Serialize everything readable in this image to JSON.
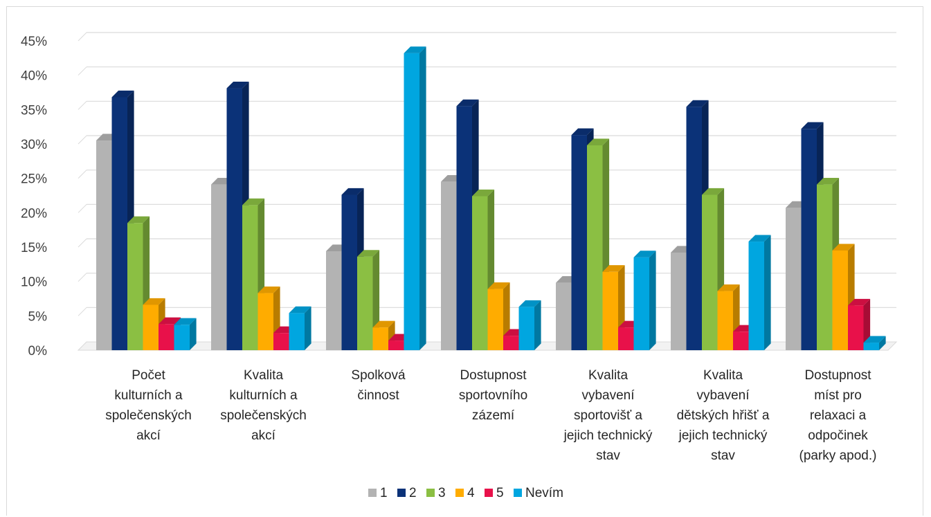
{
  "chart_data": {
    "type": "bar",
    "title": "",
    "xlabel": "",
    "ylabel": "",
    "ylim": [
      0,
      45
    ],
    "y_ticks": [
      "0%",
      "5%",
      "10%",
      "15%",
      "20%",
      "25%",
      "30%",
      "35%",
      "40%",
      "45%"
    ],
    "grid": true,
    "legend_position": "bottom",
    "categories": [
      [
        "Počet",
        "kulturních a",
        "společenských",
        "akcí"
      ],
      [
        "Kvalita",
        "kulturních a",
        "společenských",
        "akcí"
      ],
      [
        "Spolková",
        "činnost"
      ],
      [
        "Dostupnost",
        "sportovního",
        "zázemí"
      ],
      [
        "Kvalita",
        "vybavení",
        "sportovišť a",
        "jejich technický",
        "stav"
      ],
      [
        "Kvalita",
        "vybavení",
        "dětských hřišť a",
        "jejich technický",
        "stav"
      ],
      [
        "Dostupnost",
        "míst pro",
        "relaxaci a",
        "odpočinek",
        "(parky apod.)"
      ]
    ],
    "series": [
      {
        "name": "1",
        "color": "#b3b3b3",
        "values": [
          30.5,
          24.1,
          14.4,
          24.5,
          9.8,
          14.2,
          20.7
        ]
      },
      {
        "name": "2",
        "color": "#0b3278",
        "values": [
          36.8,
          38.1,
          22.6,
          35.5,
          31.3,
          35.4,
          32.2
        ]
      },
      {
        "name": "3",
        "color": "#8bbf43",
        "values": [
          18.5,
          21.1,
          13.6,
          22.4,
          29.8,
          22.6,
          24.1
        ]
      },
      {
        "name": "4",
        "color": "#ffac00",
        "values": [
          6.6,
          8.3,
          3.3,
          8.9,
          11.4,
          8.6,
          14.5
        ]
      },
      {
        "name": "5",
        "color": "#e8114a",
        "values": [
          3.8,
          2.5,
          1.4,
          2.1,
          3.3,
          2.7,
          6.5
        ]
      },
      {
        "name": "Nevím",
        "color": "#00a6e0",
        "values": [
          3.7,
          5.4,
          43.2,
          6.3,
          13.5,
          15.8,
          1.1
        ]
      }
    ]
  }
}
